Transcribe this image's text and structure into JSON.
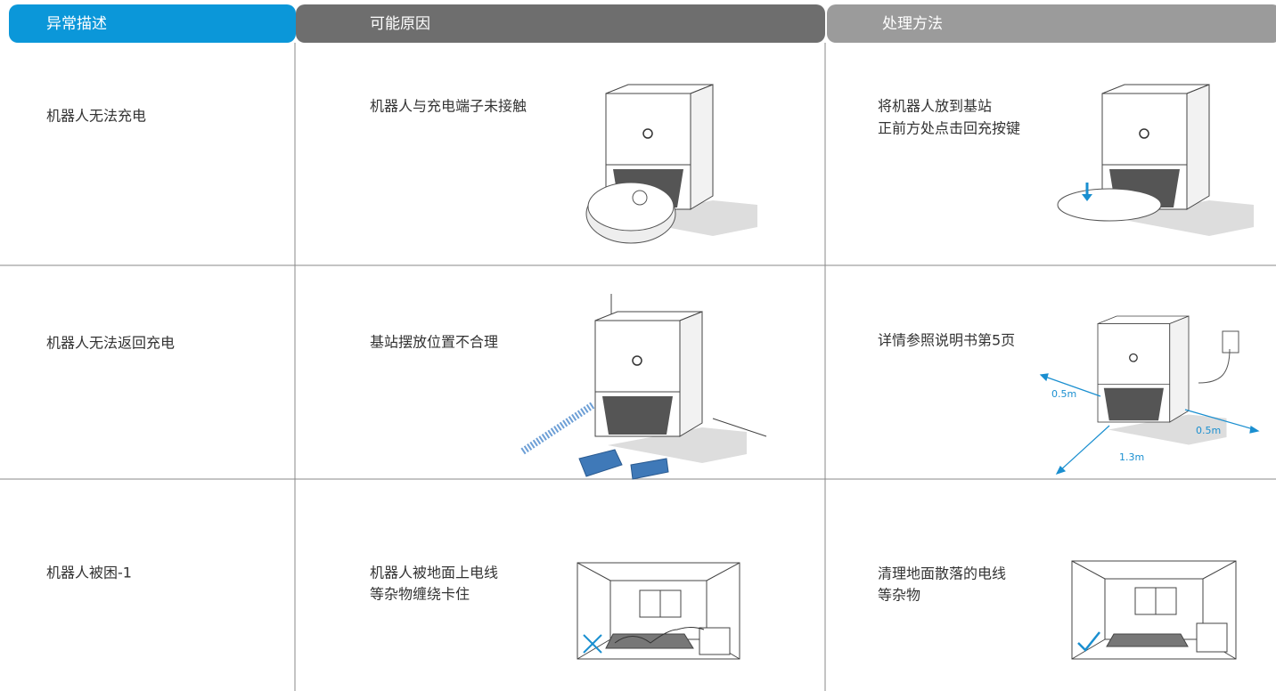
{
  "header": [
    "异常描述",
    "可能原因",
    "处理方法"
  ],
  "rows": [
    {
      "problem": "机器人无法充电",
      "cause": [
        "机器人与充电端子未接触"
      ],
      "solution": [
        "将机器人放到基站",
        "正前方处点击回充按键"
      ]
    },
    {
      "problem": "机器人无法返回充电",
      "cause": [
        "基站摆放位置不合理"
      ],
      "solution": [
        "详情参照说明书第5页"
      ],
      "figure_labels": [
        "0.5m",
        "0.5m",
        "1.3m"
      ]
    },
    {
      "problem": "机器人被困-1",
      "cause": [
        "机器人被地面上电线",
        "等杂物缠绕卡住"
      ],
      "solution": [
        "清理地面散落的电线",
        "等杂物"
      ]
    }
  ]
}
